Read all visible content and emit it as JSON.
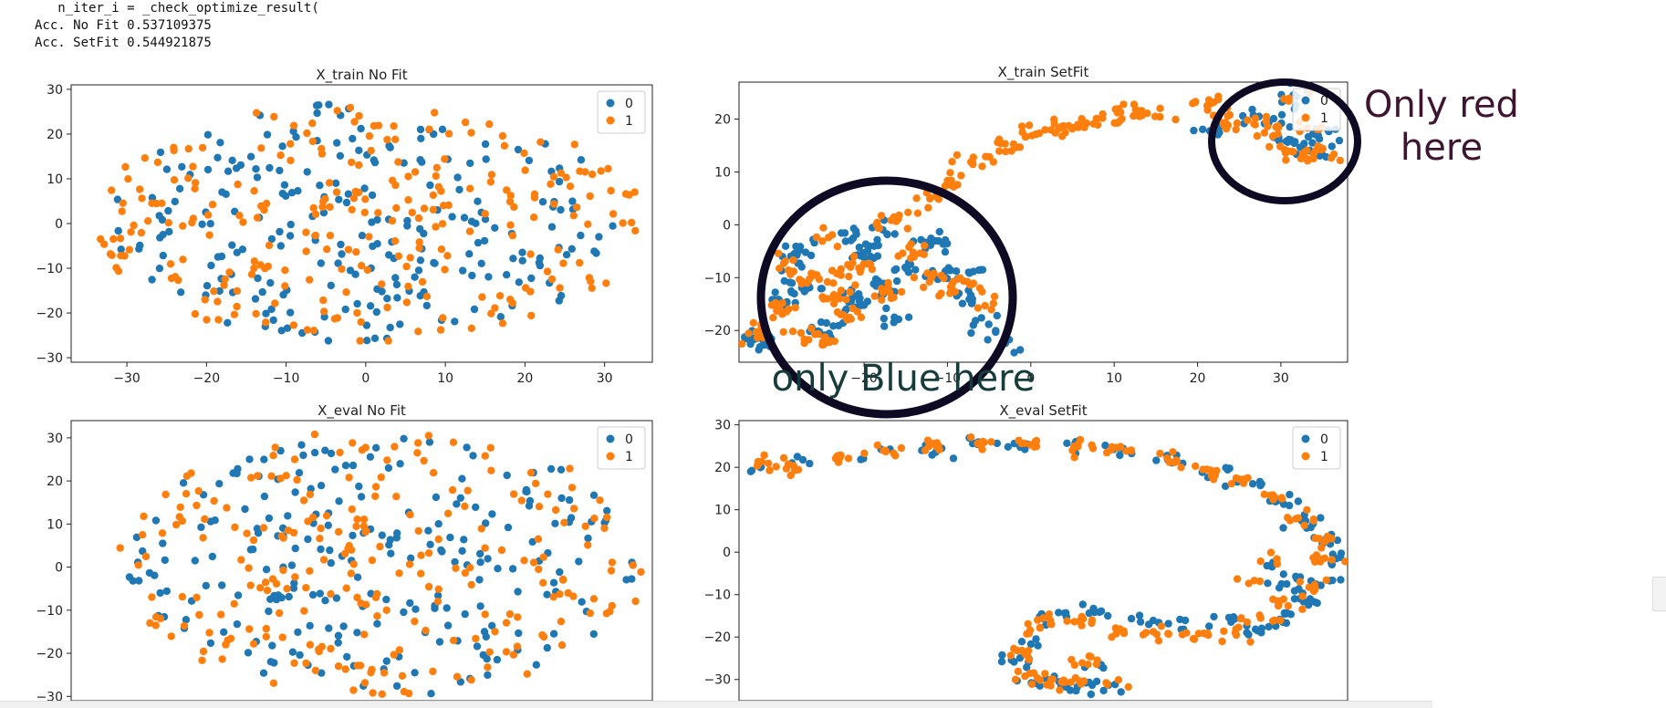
{
  "console": {
    "lines": [
      "   n_iter_i = _check_optimize_result(",
      "Acc. No Fit 0.537109375",
      "Acc. SetFit 0.544921875"
    ]
  },
  "colors": {
    "class0": "#1f77b4",
    "class1": "#ff7f0e",
    "ink": "#0e0a24",
    "note_red": "#3d1530",
    "note_blue": "#163c3b"
  },
  "annotations": {
    "red_note": [
      "Only red",
      "here"
    ],
    "blue_note": "only Blue here"
  },
  "chart_data": [
    {
      "id": "train_nofit",
      "type": "scatter",
      "title": "X_train No Fit",
      "xlim": [
        -37,
        36
      ],
      "ylim": [
        -31,
        31
      ],
      "xticks": [
        -30,
        -20,
        -10,
        0,
        10,
        20,
        30
      ],
      "yticks": [
        -30,
        -20,
        -10,
        0,
        10,
        20,
        30
      ],
      "legend": {
        "placement": "top-right",
        "entries": [
          "0",
          "1"
        ]
      },
      "series": [
        {
          "label": "0",
          "generator": {
            "kind": "blob",
            "cx": 0,
            "cy": 0,
            "rx": 32,
            "ry": 27,
            "n": 235,
            "seed": 11
          }
        },
        {
          "label": "1",
          "generator": {
            "kind": "blob",
            "cx": 0,
            "cy": 0,
            "rx": 35,
            "ry": 27,
            "n": 255,
            "seed": 23
          }
        }
      ]
    },
    {
      "id": "train_setfit",
      "type": "scatter",
      "title": "X_train SetFit",
      "xlim": [
        -35,
        38
      ],
      "ylim": [
        -26,
        27
      ],
      "xticks": [
        -20,
        -10,
        0,
        10,
        20,
        30
      ],
      "yticks": [
        -20,
        -10,
        0,
        10,
        20
      ],
      "legend": {
        "placement": "top-right",
        "entries": [
          "0",
          "1"
        ]
      },
      "series": [
        {
          "label": "0",
          "generator": {
            "kind": "path",
            "seed": 31,
            "spread": 0.9,
            "points": [
              [
                -33,
                -22,
                18
              ],
              [
                -30,
                -14,
                14
              ],
              [
                -28,
                -5,
                12
              ],
              [
                -27,
                -12,
                10
              ],
              [
                -24,
                -20,
                14
              ],
              [
                -21,
                -14,
                10
              ],
              [
                -20,
                -6,
                10
              ],
              [
                -18,
                -12,
                10
              ],
              [
                -15,
                -8,
                10
              ],
              [
                -12,
                -3,
                10
              ],
              [
                -10,
                -9,
                10
              ],
              [
                -8,
                -14,
                10
              ],
              [
                -6,
                -19,
                8
              ],
              [
                -3,
                -23,
                6
              ],
              [
                -28,
                -8,
                6
              ],
              [
                -22,
                -2,
                8
              ],
              [
                -18,
                -1,
                6
              ],
              [
                -11,
                -4,
                6
              ],
              [
                -7,
                -9,
                6
              ],
              [
                -20,
                -4,
                6
              ],
              [
                -18,
                -12,
                6
              ],
              [
                -20,
                -15,
                6
              ],
              [
                -16,
                -18,
                6
              ],
              [
                22,
                18,
                6
              ],
              [
                27,
                20,
                6
              ],
              [
                30,
                16,
                10
              ],
              [
                33,
                14,
                14
              ],
              [
                35,
                17,
                10
              ],
              [
                32,
                25,
                10
              ],
              [
                30,
                20,
                6
              ]
            ]
          }
        },
        {
          "label": "1",
          "generator": {
            "kind": "path",
            "seed": 47,
            "spread": 0.8,
            "points": [
              [
                -33,
                -20,
                16
              ],
              [
                -30,
                -16,
                12
              ],
              [
                -27,
                -10,
                12
              ],
              [
                -24,
                -14,
                10
              ],
              [
                -22,
                -17,
                10
              ],
              [
                -20,
                -8,
                10
              ],
              [
                -17,
                -13,
                10
              ],
              [
                -14,
                -5,
                10
              ],
              [
                -12,
                -10,
                8
              ],
              [
                -10,
                -12,
                8
              ],
              [
                -7,
                -11,
                8
              ],
              [
                -5,
                -15,
                6
              ],
              [
                -30,
                -7,
                6
              ],
              [
                -25,
                -3,
                6
              ],
              [
                -22,
                -9,
                6
              ],
              [
                -24,
                -22,
                8
              ],
              [
                -27,
                -21,
                8
              ],
              [
                -23,
                -12,
                6
              ],
              [
                -18,
                0,
                6
              ],
              [
                -15,
                2,
                8
              ],
              [
                -12,
                5,
                8
              ],
              [
                -9,
                8,
                8
              ],
              [
                -6,
                12,
                10
              ],
              [
                -3,
                15,
                10
              ],
              [
                0,
                17,
                10
              ],
              [
                3,
                18,
                10
              ],
              [
                6,
                19,
                10
              ],
              [
                9,
                20,
                10
              ],
              [
                12,
                21,
                10
              ],
              [
                15,
                21,
                8
              ],
              [
                20,
                23,
                8
              ],
              [
                22,
                21,
                8
              ],
              [
                24,
                19,
                8
              ],
              [
                27,
                19,
                8
              ],
              [
                29,
                17,
                8
              ],
              [
                31,
                14,
                8
              ],
              [
                33,
                13,
                8
              ],
              [
                35,
                14,
                8
              ],
              [
                31,
                24,
                4
              ],
              [
                34,
                18,
                6
              ]
            ]
          }
        }
      ]
    },
    {
      "id": "eval_nofit",
      "type": "scatter",
      "title": "X_eval No Fit",
      "xlim": [
        -37,
        36
      ],
      "ylim": [
        -31,
        34
      ],
      "xticks": [],
      "yticks": [
        -30,
        -20,
        -10,
        0,
        10,
        20,
        30
      ],
      "legend": {
        "placement": "top-right",
        "entries": [
          "0",
          "1"
        ]
      },
      "series": [
        {
          "label": "0",
          "generator": {
            "kind": "blob",
            "cx": 2,
            "cy": 1,
            "rx": 32,
            "ry": 31,
            "n": 230,
            "seed": 59
          }
        },
        {
          "label": "1",
          "generator": {
            "kind": "blob",
            "cx": 2,
            "cy": 1,
            "rx": 34,
            "ry": 31,
            "n": 240,
            "seed": 71
          }
        }
      ]
    },
    {
      "id": "eval_setfit",
      "type": "scatter",
      "title": "X_eval SetFit",
      "xlim": [
        -38,
        38
      ],
      "ylim": [
        -35,
        31
      ],
      "xticks": [],
      "yticks": [
        -30,
        -20,
        -10,
        0,
        10,
        20,
        30
      ],
      "legend": {
        "placement": "top-right",
        "entries": [
          "0",
          "1"
        ]
      },
      "series": [
        {
          "label": "0",
          "generator": {
            "kind": "path",
            "seed": 83,
            "spread": 0.9,
            "points": [
              [
                -36,
                20,
                4
              ],
              [
                -30,
                21,
                4
              ],
              [
                -22,
                22,
                4
              ],
              [
                -14,
                24,
                6
              ],
              [
                -8,
                26,
                6
              ],
              [
                -2,
                25,
                6
              ],
              [
                4,
                25,
                6
              ],
              [
                10,
                24,
                6
              ],
              [
                16,
                22,
                6
              ],
              [
                22,
                19,
                6
              ],
              [
                26,
                16,
                6
              ],
              [
                30,
                12,
                8
              ],
              [
                33,
                7,
                8
              ],
              [
                35,
                2,
                8
              ],
              [
                36,
                -2,
                8
              ],
              [
                35,
                -7,
                6
              ],
              [
                32,
                -10,
                8
              ],
              [
                30,
                -15,
                8
              ],
              [
                27,
                -18,
                8
              ],
              [
                24,
                -16,
                6
              ],
              [
                18,
                -17,
                6
              ],
              [
                12,
                -16,
                6
              ],
              [
                7,
                -14,
                6
              ],
              [
                3,
                -14,
                6
              ],
              [
                0,
                -16,
                4
              ],
              [
                -1,
                -22,
                4
              ],
              [
                -3,
                -26,
                8
              ],
              [
                -1,
                -30,
                8
              ],
              [
                2,
                -32,
                8
              ],
              [
                5,
                -31,
                6
              ],
              [
                7,
                -27,
                6
              ],
              [
                8,
                -33,
                4
              ],
              [
                28,
                -3,
                4
              ],
              [
                31,
                -5,
                4
              ],
              [
                33,
                -11,
                4
              ],
              [
                30,
                -8,
                4
              ]
            ]
          }
        },
        {
          "label": "1",
          "generator": {
            "kind": "path",
            "seed": 97,
            "spread": 0.9,
            "points": [
              [
                -36,
                21,
                8
              ],
              [
                -32,
                20,
                8
              ],
              [
                -26,
                22,
                8
              ],
              [
                -20,
                24,
                8
              ],
              [
                -14,
                25,
                8
              ],
              [
                -8,
                26,
                8
              ],
              [
                -2,
                25,
                8
              ],
              [
                4,
                25,
                8
              ],
              [
                10,
                24,
                8
              ],
              [
                16,
                22,
                8
              ],
              [
                21,
                19,
                8
              ],
              [
                25,
                17,
                8
              ],
              [
                29,
                13,
                8
              ],
              [
                32,
                8,
                8
              ],
              [
                34,
                3,
                8
              ],
              [
                35,
                -2,
                8
              ],
              [
                33,
                -8,
                8
              ],
              [
                30,
                -12,
                8
              ],
              [
                27,
                -16,
                8
              ],
              [
                23,
                -19,
                8
              ],
              [
                19,
                -20,
                8
              ],
              [
                14,
                -19,
                8
              ],
              [
                9,
                -18,
                8
              ],
              [
                5,
                -16,
                8
              ],
              [
                1,
                -16,
                6
              ],
              [
                -2,
                -18,
                6
              ],
              [
                -3,
                -24,
                8
              ],
              [
                -2,
                -29,
                8
              ],
              [
                1,
                -31,
                8
              ],
              [
                4,
                -30,
                8
              ],
              [
                6,
                -26,
                8
              ],
              [
                9,
                -31,
                4
              ],
              [
                26,
                -7,
                4
              ],
              [
                29,
                -2,
                4
              ]
            ]
          }
        }
      ]
    }
  ]
}
